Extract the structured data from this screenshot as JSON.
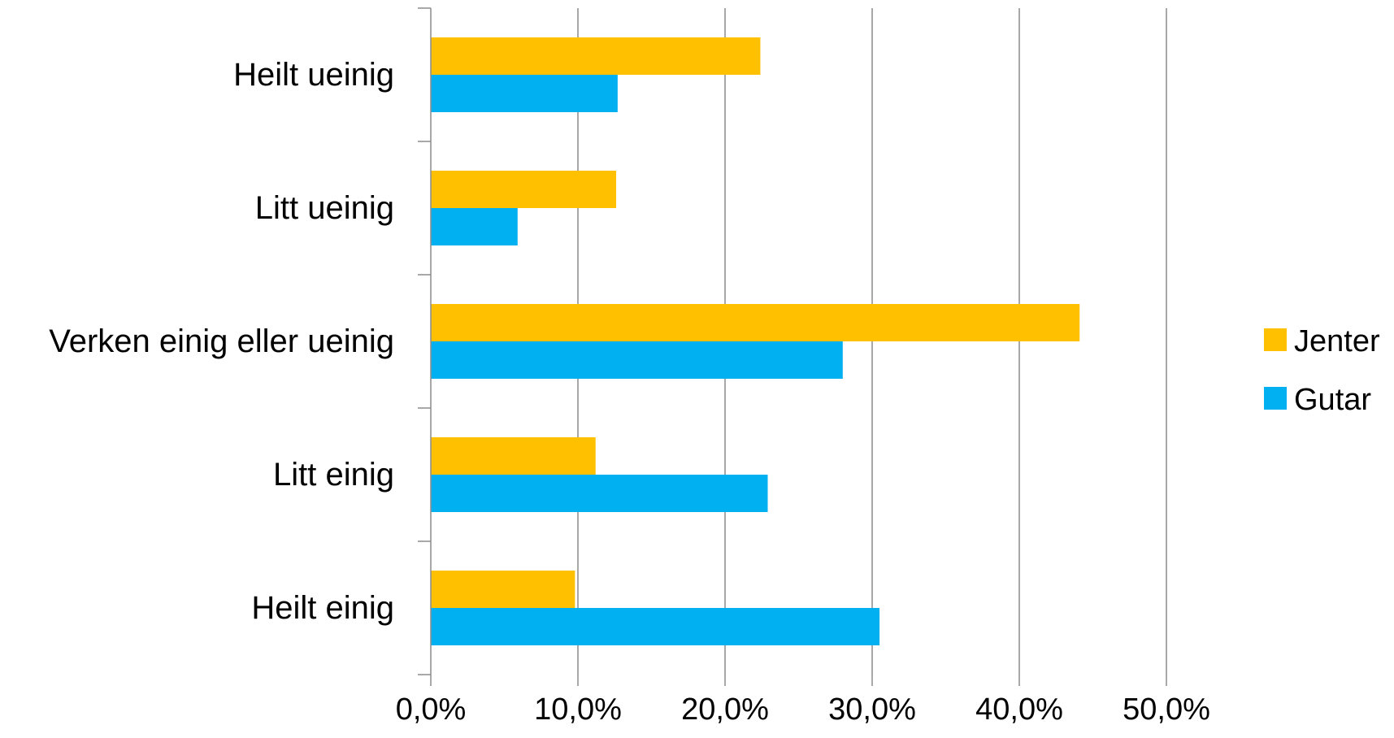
{
  "chart_data": {
    "type": "bar",
    "orientation": "horizontal",
    "categories": [
      "Heilt ueinig",
      "Litt ueinig",
      "Verken einig eller ueinig",
      "Litt einig",
      "Heilt einig"
    ],
    "series": [
      {
        "name": "Jenter",
        "color": "#FFC000",
        "values": [
          22.4,
          12.6,
          44.1,
          11.2,
          9.8
        ]
      },
      {
        "name": "Gutar",
        "color": "#00B0F0",
        "values": [
          12.7,
          5.9,
          28.0,
          22.9,
          30.5
        ]
      }
    ],
    "xlim": [
      0,
      50
    ],
    "x_ticks": [
      0,
      10,
      20,
      30,
      40,
      50
    ],
    "x_tick_labels": [
      "0,0%",
      "10,0%",
      "20,0%",
      "30,0%",
      "40,0%",
      "50,0%"
    ],
    "grid": "vertical",
    "legend_position": "right",
    "title": "",
    "xlabel": "",
    "ylabel": ""
  }
}
